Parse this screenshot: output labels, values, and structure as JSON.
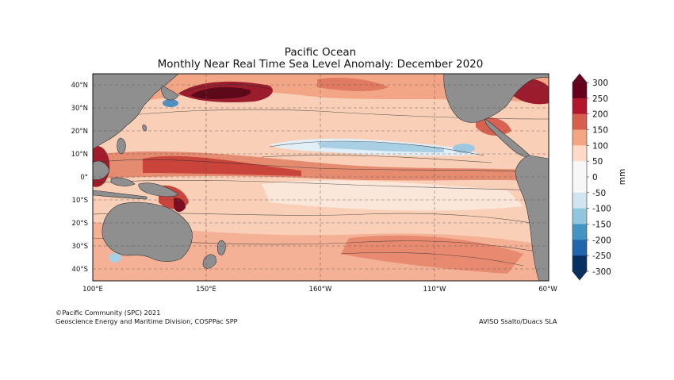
{
  "title": "Pacific Ocean",
  "subtitle": "Monthly Near Real Time Sea Level Anomaly: December 2020",
  "lon_ticks": [
    "100°E",
    "150°E",
    "160°W",
    "110°W",
    "60°W"
  ],
  "lat_ticks": [
    "40°N",
    "30°N",
    "20°N",
    "10°N",
    "0°",
    "10°S",
    "20°S",
    "30°S",
    "40°S"
  ],
  "colorbar": {
    "unit": "mm",
    "levels": [
      "300",
      "250",
      "200",
      "150",
      "100",
      "50",
      "0",
      "-50",
      "-100",
      "-150",
      "-200",
      "-250",
      "-300"
    ],
    "colors": [
      "#67001f",
      "#b2182b",
      "#d6604d",
      "#f4a582",
      "#fddbc7",
      "#f7f7f7",
      "#f7f7f7",
      "#d1e5f0",
      "#92c5de",
      "#4393c3",
      "#2166ac",
      "#053061"
    ]
  },
  "credits": {
    "copyright": "©Pacific Community (SPC) 2021",
    "division": "Geoscience Energy and Maritime Division, COSPPac SPP",
    "source": "AVISO Ssalto/Duacs SLA"
  }
}
